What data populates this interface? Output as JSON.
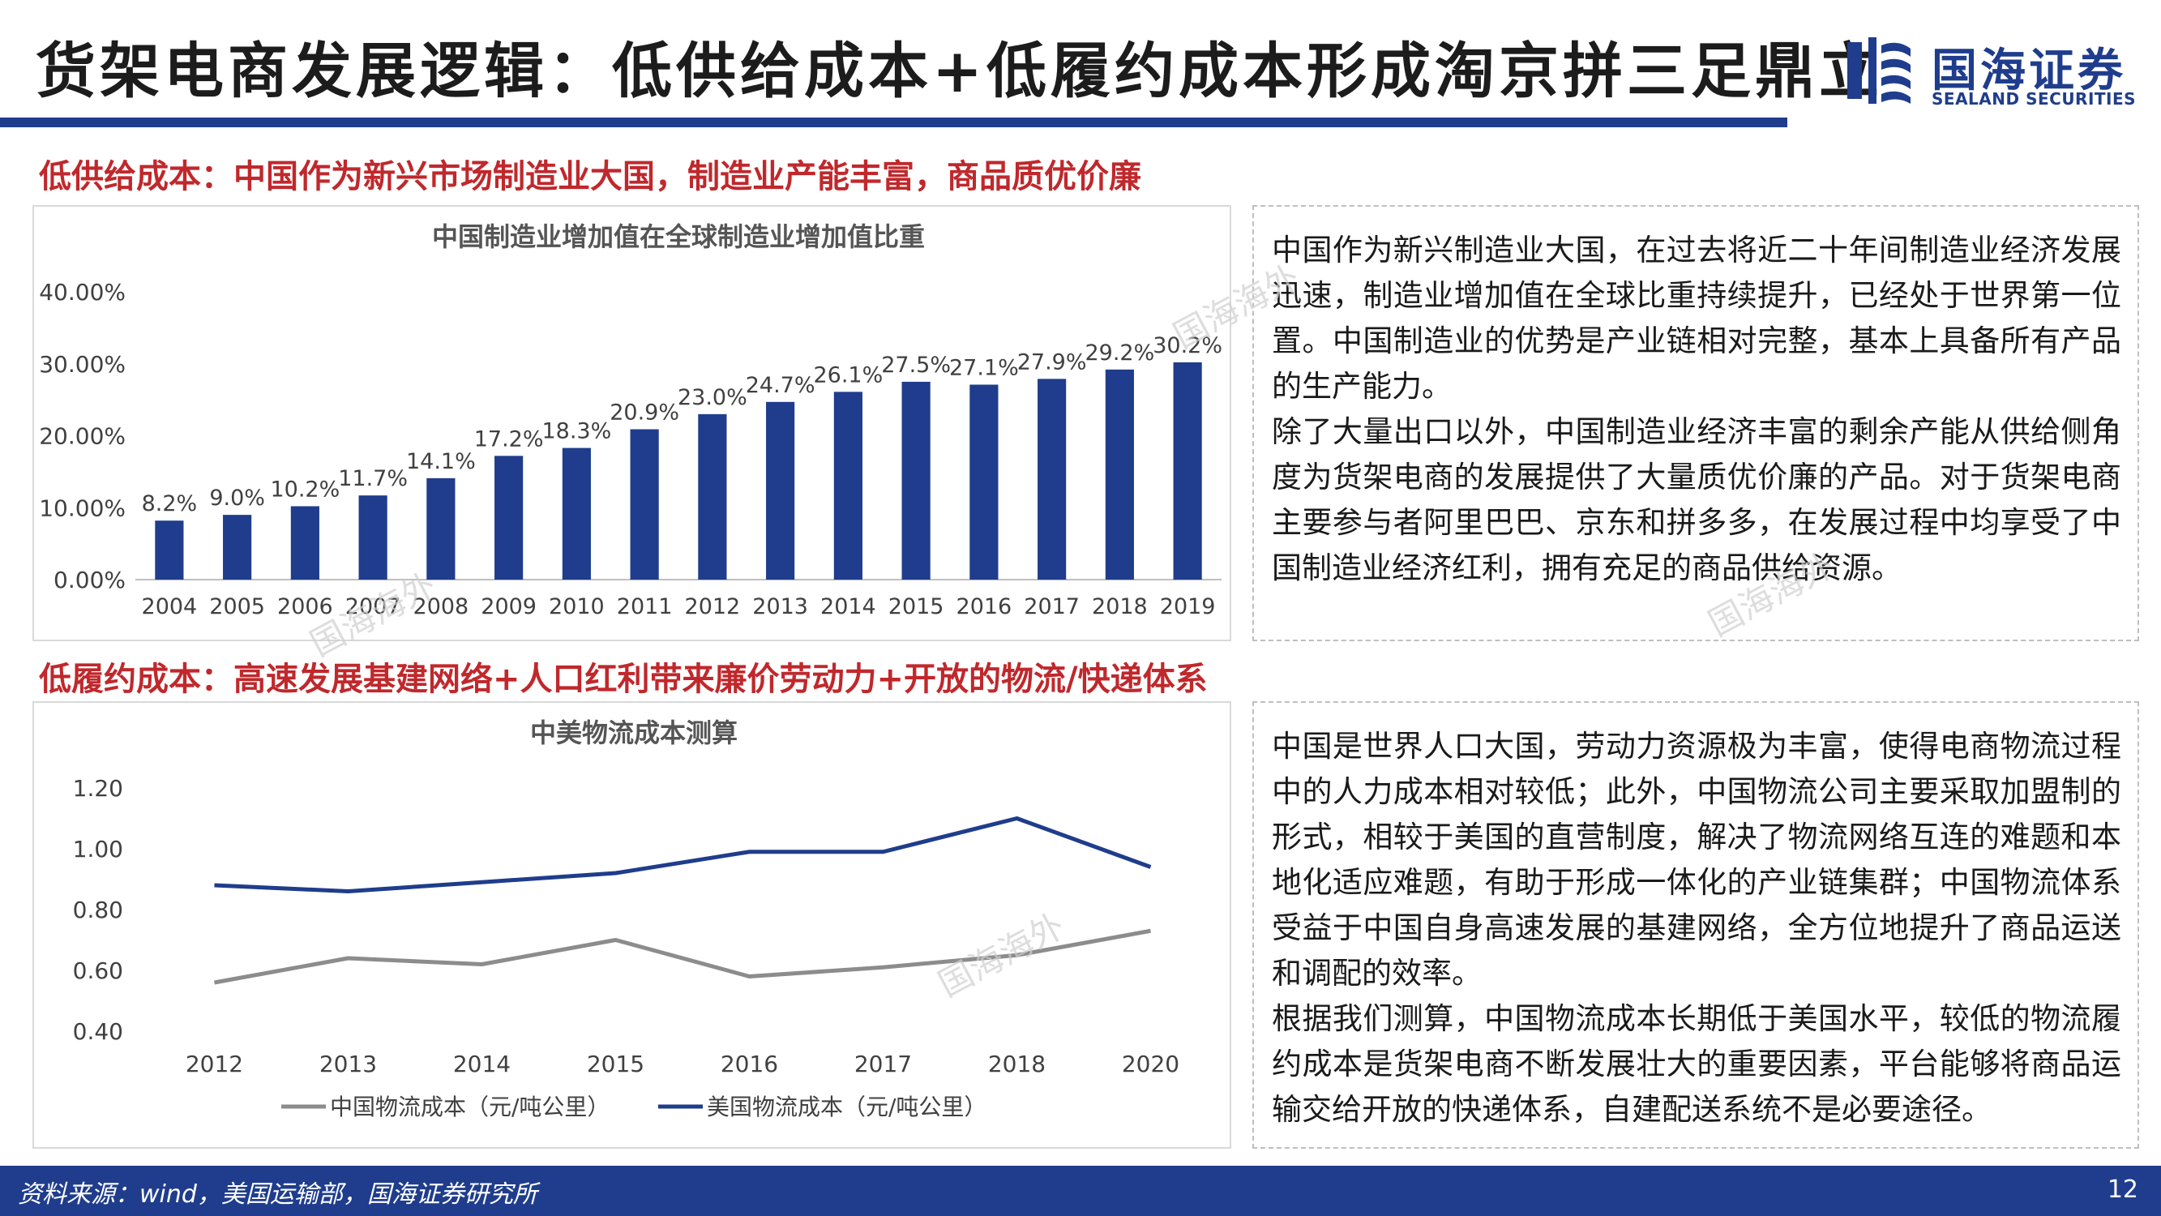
{
  "page": {
    "title": "货架电商发展逻辑：低供给成本+低履约成本形成淘京拼三足鼎立",
    "page_number": "12",
    "source": "资料来源：wind，美国运输部，国海证券研究所"
  },
  "logo": {
    "name_cn": "国海证券",
    "name_en": "SEALAND SECURITIES",
    "color": "#1f3d8c"
  },
  "watermark": "国海海外",
  "section1": {
    "heading": "低供给成本：中国作为新兴市场制造业大国，制造业产能丰富，商品质优价廉",
    "paragraphs": [
      "中国作为新兴制造业大国，在过去将近二十年间制造业经济发展迅速，制造业增加值在全球比重持续提升，已经处于世界第一位置。中国制造业的优势是产业链相对完整，基本上具备所有产品的生产能力。",
      "除了大量出口以外，中国制造业经济丰富的剩余产能从供给侧角度为货架电商的发展提供了大量质优价廉的产品。对于货架电商主要参与者阿里巴巴、京东和拼多多，在发展过程中均享受了中国制造业经济红利，拥有充足的商品供给资源。"
    ]
  },
  "section2": {
    "heading": "低履约成本：高速发展基建网络+人口红利带来廉价劳动力+开放的物流/快递体系",
    "paragraphs": [
      "中国是世界人口大国，劳动力资源极为丰富，使得电商物流过程中的人力成本相对较低；此外，中国物流公司主要采取加盟制的形式，相较于美国的直营制度，解决了物流网络互连的难题和本地化适应难题，有助于形成一体化的产业链集群；中国物流体系受益于中国自身高速发展的基建网络，全方位地提升了商品运送和调配的效率。",
      "根据我们测算，中国物流成本长期低于美国水平，较低的物流履约成本是货架电商不断发展壮大的重要因素，平台能够将商品运输交给开放的快递体系，自建配送系统不是必要途径。"
    ]
  },
  "chart_data": [
    {
      "type": "bar",
      "title": "中国制造业增加值在全球制造业增加值比重",
      "categories": [
        "2004",
        "2005",
        "2006",
        "2007",
        "2008",
        "2009",
        "2010",
        "2011",
        "2012",
        "2013",
        "2014",
        "2015",
        "2016",
        "2017",
        "2018",
        "2019"
      ],
      "values": [
        8.2,
        9.0,
        10.2,
        11.7,
        14.1,
        17.2,
        18.3,
        20.9,
        23.0,
        24.7,
        26.1,
        27.5,
        27.1,
        27.9,
        29.2,
        30.2
      ],
      "data_labels": [
        "8.2%",
        "9.0%",
        "10.2%",
        "11.7%",
        "14.1%",
        "17.2%",
        "18.3%",
        "20.9%",
        "23.0%",
        "24.7%",
        "26.1%",
        "27.5%",
        "27.1%",
        "27.9%",
        "29.2%",
        "30.2%"
      ],
      "yticks": [
        "0.00%",
        "10.00%",
        "20.00%",
        "30.00%",
        "40.00%"
      ],
      "ylim": [
        0,
        40
      ],
      "color": "#1f3d8c",
      "xlabel": "",
      "ylabel": ""
    },
    {
      "type": "line",
      "title": "中美物流成本测算",
      "categories": [
        "2012",
        "2013",
        "2014",
        "2015",
        "2016",
        "2017",
        "2018",
        "2020"
      ],
      "yticks": [
        "0.40",
        "0.60",
        "0.80",
        "1.00",
        "1.20"
      ],
      "ylim": [
        0.4,
        1.2
      ],
      "legend_position": "bottom",
      "series": [
        {
          "name": "中国物流成本（元/吨公里）",
          "color": "#8c8c8c",
          "values": [
            0.56,
            0.64,
            0.62,
            0.7,
            0.58,
            0.61,
            0.65,
            0.73
          ]
        },
        {
          "name": "美国物流成本（元/吨公里）",
          "color": "#1f3d8c",
          "values": [
            0.88,
            0.86,
            0.89,
            0.92,
            0.99,
            0.99,
            1.1,
            0.94
          ]
        }
      ],
      "xlabel": "",
      "ylabel": ""
    }
  ]
}
